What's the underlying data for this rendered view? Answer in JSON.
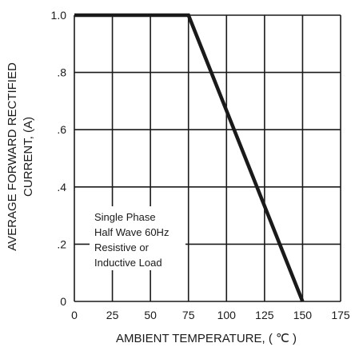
{
  "chart_data": {
    "type": "line",
    "xlabel": "AMBIENT TEMPERATURE, ( ℃ )",
    "ylabel_lines": [
      "AVERAGE FORWARD RECTIFIED",
      "CURRENT, (A)"
    ],
    "xlim": [
      0,
      175
    ],
    "ylim": [
      0,
      1.0
    ],
    "x_ticks": [
      0,
      25,
      50,
      75,
      100,
      125,
      150,
      175
    ],
    "x_tick_labels": [
      "0",
      "25",
      "50",
      "75",
      "100",
      "125",
      "150",
      "175"
    ],
    "y_ticks": [
      0,
      0.2,
      0.4,
      0.6,
      0.8,
      1.0
    ],
    "y_tick_labels": [
      "0",
      ".2",
      ".4",
      ".6",
      ".8",
      "1.0"
    ],
    "grid": true,
    "series": [
      {
        "x": [
          0,
          75,
          150
        ],
        "y": [
          1.0,
          1.0,
          0.0
        ]
      }
    ],
    "annotation_lines": [
      "Single Phase",
      "Half Wave 60Hz",
      "Resistive or",
      "Inductive Load"
    ]
  }
}
